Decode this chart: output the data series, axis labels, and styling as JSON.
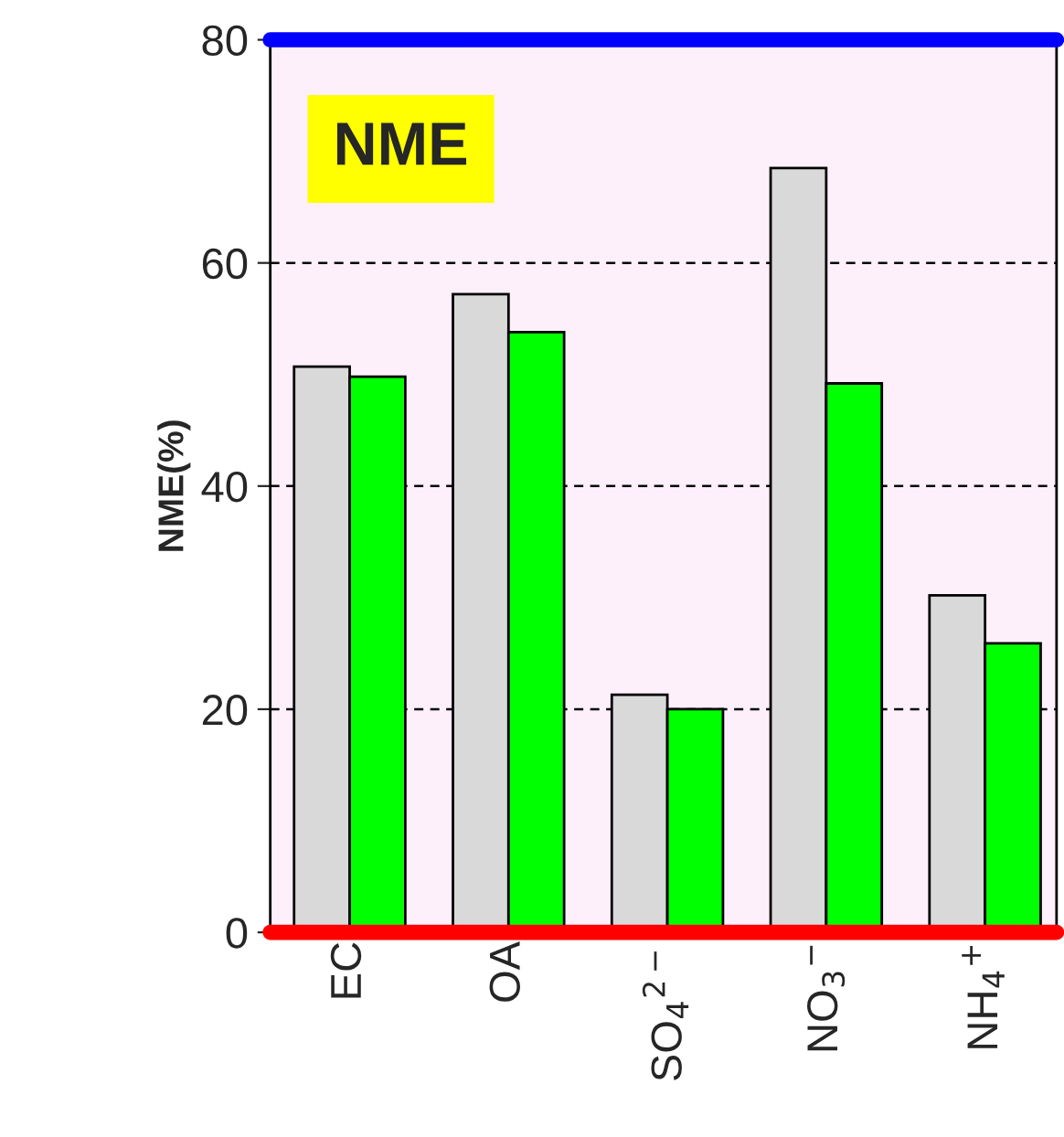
{
  "chart_data": {
    "type": "bar",
    "title": "NME",
    "ylabel": "NME(%)",
    "categories": [
      "EC",
      "OA",
      "SO$_{4}$$^{2−}$",
      "NO$_{3}$$^{−}$",
      "NH$_{4}$$^{+}$"
    ],
    "series": [
      {
        "color": "#d9d9d9",
        "values": [
          50.7,
          57.2,
          21.3,
          68.5,
          30.2
        ]
      },
      {
        "color": "#00ff00",
        "values": [
          49.8,
          53.8,
          20.0,
          49.2,
          25.9
        ]
      }
    ],
    "ylim": [
      0,
      80
    ],
    "yticks": [
      0,
      20,
      40,
      60,
      80
    ],
    "grid": "y",
    "legend": false,
    "ref_lines": [
      {
        "axis": "y",
        "value": 80,
        "color": "#0000ff"
      }
    ]
  }
}
